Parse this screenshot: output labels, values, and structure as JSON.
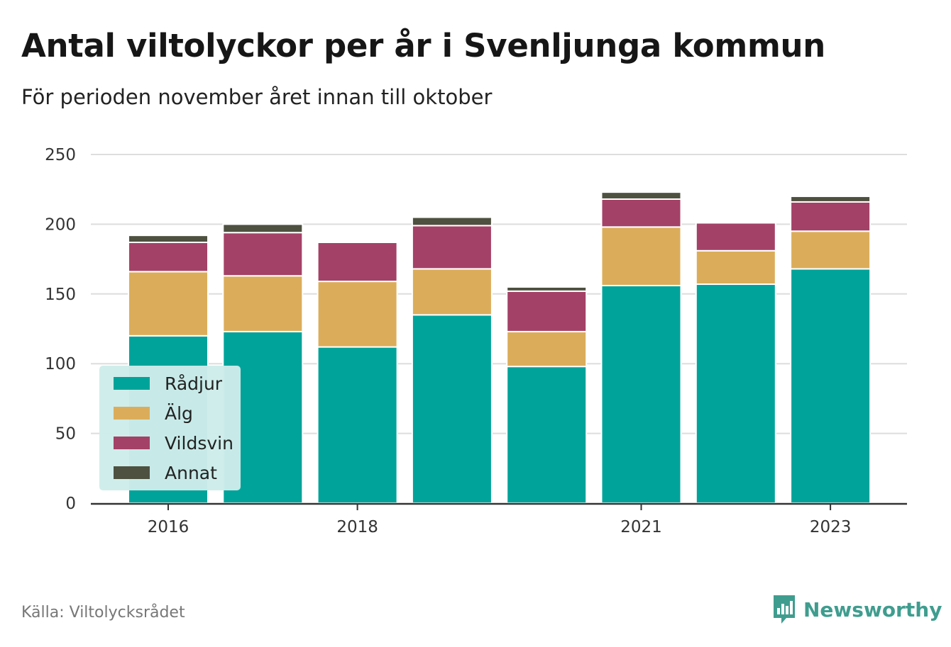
{
  "header": {
    "title": "Antal viltolyckor per år i Svenljunga kommun",
    "subtitle": "För perioden november året innan till oktober"
  },
  "footer": {
    "source": "Källa: Viltolycksrådet",
    "brand": "Newsworthy",
    "brand_icon": "bar-chart-speech-bubble-icon"
  },
  "colors": {
    "Rådjur": "#00a39a",
    "Älg": "#dbad5a",
    "Vildsvin": "#a44166",
    "Annat": "#4e5040",
    "grid": "#dddddd",
    "axis": "#333333",
    "legend_bg": "#cdecea"
  },
  "chart_data": {
    "type": "bar",
    "stacked": true,
    "categories": [
      "2016",
      "2017",
      "2018",
      "2019",
      "2020",
      "2021",
      "2022",
      "2023"
    ],
    "tick_labels": [
      "2016",
      "",
      "2018",
      "",
      "",
      "2021",
      "",
      "2023"
    ],
    "series": [
      {
        "name": "Rådjur",
        "values": [
          120,
          123,
          112,
          135,
          98,
          156,
          157,
          168
        ]
      },
      {
        "name": "Älg",
        "values": [
          46,
          40,
          47,
          33,
          25,
          42,
          24,
          27
        ]
      },
      {
        "name": "Vildsvin",
        "values": [
          21,
          31,
          28,
          31,
          29,
          20,
          20,
          21
        ]
      },
      {
        "name": "Annat",
        "values": [
          5,
          6,
          1,
          6,
          3,
          5,
          1,
          4
        ]
      }
    ],
    "ylim": [
      0,
      250
    ],
    "yticks": [
      0,
      50,
      100,
      150,
      200,
      250
    ],
    "grid": true,
    "legend_position": "bottom-left"
  }
}
